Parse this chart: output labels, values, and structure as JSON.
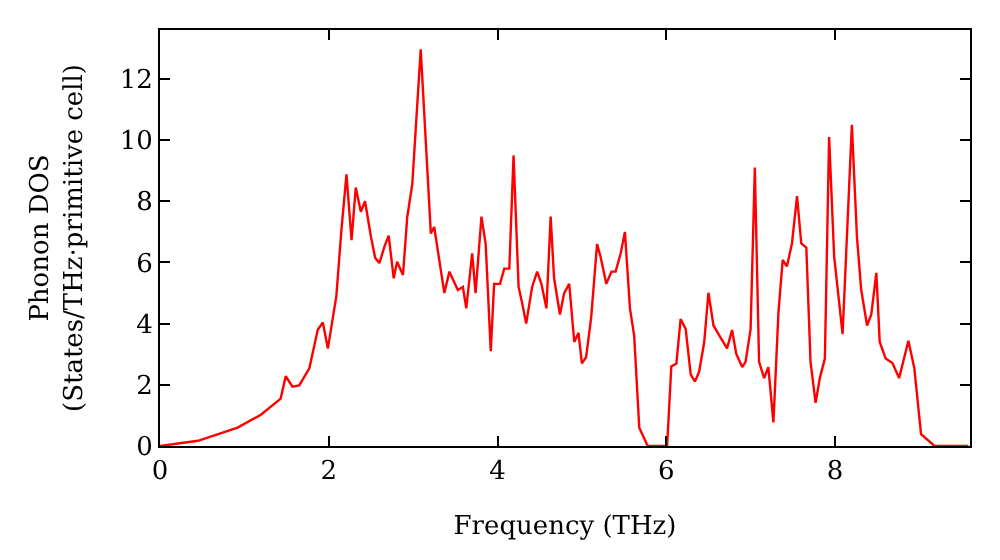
{
  "chart_data": {
    "type": "line",
    "xlabel": "Frequency (THz)",
    "ylabel": "Phonon DOS\n(States/THz·primitive cell)",
    "x": [
      0,
      0.45,
      0.92,
      1.2,
      1.43,
      1.49,
      1.57,
      1.65,
      1.77,
      1.87,
      1.93,
      1.99,
      2.09,
      2.15,
      2.21,
      2.27,
      2.32,
      2.38,
      2.43,
      2.5,
      2.55,
      2.6,
      2.66,
      2.71,
      2.77,
      2.81,
      2.88,
      2.93,
      2.99,
      3.09,
      3.21,
      3.25,
      3.37,
      3.43,
      3.53,
      3.59,
      3.63,
      3.7,
      3.74,
      3.81,
      3.86,
      3.92,
      3.96,
      4.03,
      4.08,
      4.14,
      4.19,
      4.25,
      4.29,
      4.34,
      4.41,
      4.47,
      4.52,
      4.58,
      4.63,
      4.67,
      4.74,
      4.79,
      4.85,
      4.91,
      4.96,
      5.0,
      5.05,
      5.11,
      5.18,
      5.22,
      5.29,
      5.35,
      5.4,
      5.46,
      5.51,
      5.57,
      5.62,
      5.68,
      5.78,
      6.01,
      6.06,
      6.12,
      6.17,
      6.23,
      6.29,
      6.34,
      6.39,
      6.45,
      6.5,
      6.56,
      6.63,
      6.72,
      6.78,
      6.83,
      6.9,
      6.94,
      7.0,
      7.05,
      7.1,
      7.16,
      7.21,
      7.27,
      7.33,
      7.38,
      7.43,
      7.49,
      7.55,
      7.6,
      7.66,
      7.71,
      7.77,
      7.82,
      7.88,
      7.93,
      7.99,
      8.09,
      8.2,
      8.26,
      8.31,
      8.38,
      8.43,
      8.49,
      8.53,
      8.6,
      8.68,
      8.76,
      8.87,
      8.94,
      9.02,
      9.18,
      9.58
    ],
    "series": [
      {
        "color": "#ff0000",
        "values": [
          0,
          0.17,
          0.6,
          1.03,
          1.55,
          2.28,
          1.94,
          1.98,
          2.54,
          3.8,
          4.04,
          3.19,
          4.9,
          7.05,
          8.88,
          6.73,
          8.45,
          7.66,
          8.0,
          6.84,
          6.15,
          5.98,
          6.52,
          6.88,
          5.48,
          6.02,
          5.59,
          7.48,
          8.56,
          12.97,
          6.95,
          7.16,
          5.0,
          5.7,
          5.1,
          5.2,
          4.5,
          6.3,
          5.0,
          7.5,
          6.6,
          3.1,
          5.3,
          5.3,
          5.8,
          5.8,
          9.5,
          5.2,
          4.7,
          4.0,
          5.2,
          5.7,
          5.3,
          4.5,
          7.5,
          5.5,
          4.3,
          5.0,
          5.3,
          3.4,
          3.7,
          2.7,
          2.9,
          4.2,
          6.6,
          6.2,
          5.3,
          5.7,
          5.7,
          6.3,
          7.0,
          4.5,
          3.6,
          0.6,
          0,
          0,
          2.6,
          2.7,
          4.15,
          3.83,
          2.33,
          2.11,
          2.43,
          3.4,
          5.01,
          3.94,
          3.61,
          3.19,
          3.79,
          3.01,
          2.58,
          2.75,
          3.83,
          9.1,
          2.75,
          2.22,
          2.58,
          0.77,
          4.37,
          6.08,
          5.87,
          6.62,
          8.17,
          6.62,
          6.49,
          2.75,
          1.41,
          2.22,
          2.86,
          10.1,
          6.19,
          3.66,
          10.5,
          6.84,
          5.12,
          3.94,
          4.3,
          5.66,
          3.4,
          2.86,
          2.71,
          2.22,
          3.44,
          2.54,
          0.39,
          0,
          0
        ]
      }
    ],
    "xlim": [
      0,
      9.6
    ],
    "ylim": [
      0,
      13.6
    ],
    "xticks": [
      0,
      2,
      4,
      6,
      8
    ],
    "yticks": [
      0,
      2,
      4,
      6,
      8,
      10,
      12
    ],
    "grid": false,
    "legend": false
  }
}
